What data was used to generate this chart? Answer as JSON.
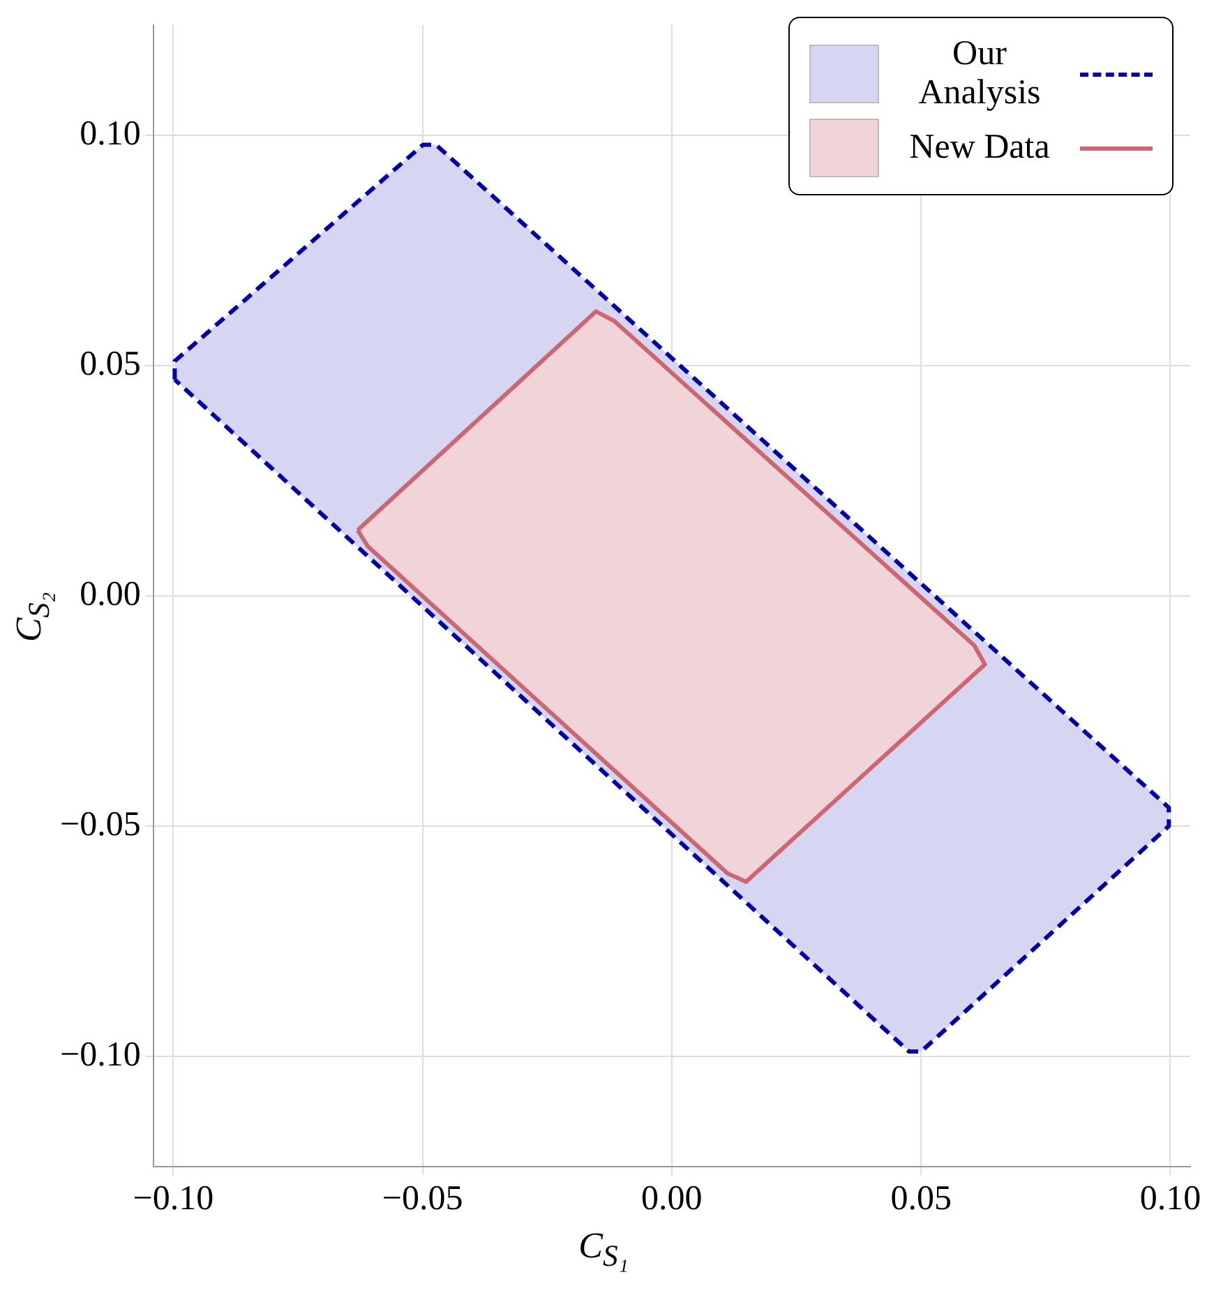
{
  "chart_data": {
    "type": "area",
    "xlabel": "C$_{S₁}$",
    "ylabel": "C$_{S₂}$",
    "xlim": [
      -0.104,
      0.104
    ],
    "ylim": [
      -0.124,
      0.124
    ],
    "xticks": [
      {
        "value": -0.1,
        "label": "−0.10"
      },
      {
        "value": -0.05,
        "label": "−0.05"
      },
      {
        "value": 0,
        "label": "0.00"
      },
      {
        "value": 0.05,
        "label": "0.05"
      },
      {
        "value": 0.1,
        "label": "0.10"
      }
    ],
    "yticks": [
      {
        "value": -0.1,
        "label": "−0.10"
      },
      {
        "value": -0.05,
        "label": "−0.05"
      },
      {
        "value": 0,
        "label": "0.00"
      },
      {
        "value": 0.05,
        "label": "0.05"
      },
      {
        "value": 0.1,
        "label": "0.10"
      }
    ],
    "grid": true,
    "legend": "top right",
    "series": [
      {
        "name": "Our Analysis",
        "color": "#0000b0",
        "line_style": "dashed",
        "x": [
          -0.0997,
          -0.0997,
          -0.0499,
          -0.0473,
          0.0997,
          0.0997,
          0.05,
          0.0476,
          -0.0997
        ],
        "values": [
          0.047,
          0.051,
          0.098,
          0.098,
          -0.046,
          -0.05,
          -0.099,
          -0.099,
          0.047
        ]
      },
      {
        "name": "New Data",
        "color": "#cc6670",
        "line_style": "solid",
        "x": [
          -0.063,
          -0.0152,
          -0.0115,
          0.0607,
          0.0628,
          0.0149,
          0.0112,
          -0.061,
          -0.063
        ],
        "values": [
          0.0143,
          0.0618,
          0.0597,
          -0.0108,
          -0.0149,
          -0.0621,
          -0.0603,
          0.0108,
          0.0143
        ]
      }
    ]
  }
}
